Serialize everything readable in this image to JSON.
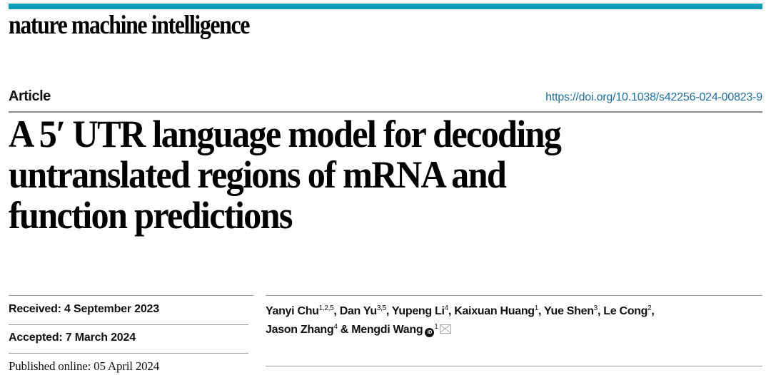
{
  "journal": {
    "name": "nature machine intelligence",
    "accent_color": "#0e9bb5"
  },
  "article": {
    "type": "Article",
    "doi": "https://doi.org/10.1038/s42256-024-00823-9",
    "title_lines": [
      "A 5′ UTR language model for decoding",
      "untranslated regions of mRNA and",
      "function predictions"
    ]
  },
  "dates": {
    "received": "Received: 4 September 2023",
    "accepted": "Accepted: 7 March 2024",
    "published": "Published online: 05 April 2024"
  },
  "authors": [
    {
      "name": "Yanyi Chu",
      "aff": "1,2,5",
      "sep": ", "
    },
    {
      "name": "Dan Yu",
      "aff": "3,5",
      "sep": ", "
    },
    {
      "name": "Yupeng Li",
      "aff": "4",
      "sep": ", "
    },
    {
      "name": "Kaixuan Huang",
      "aff": "1",
      "sep": ", "
    },
    {
      "name": "Yue Shen",
      "aff": "3",
      "sep": ", "
    },
    {
      "name": "Le Cong",
      "aff": "2",
      "sep": ","
    },
    {
      "name": "Jason Zhang",
      "aff": "4",
      "sep": " & "
    },
    {
      "name": "Mengdi Wang",
      "aff": "1",
      "sep": ""
    }
  ],
  "icons": {
    "orcid": "iD",
    "email": "envelope-icon"
  }
}
